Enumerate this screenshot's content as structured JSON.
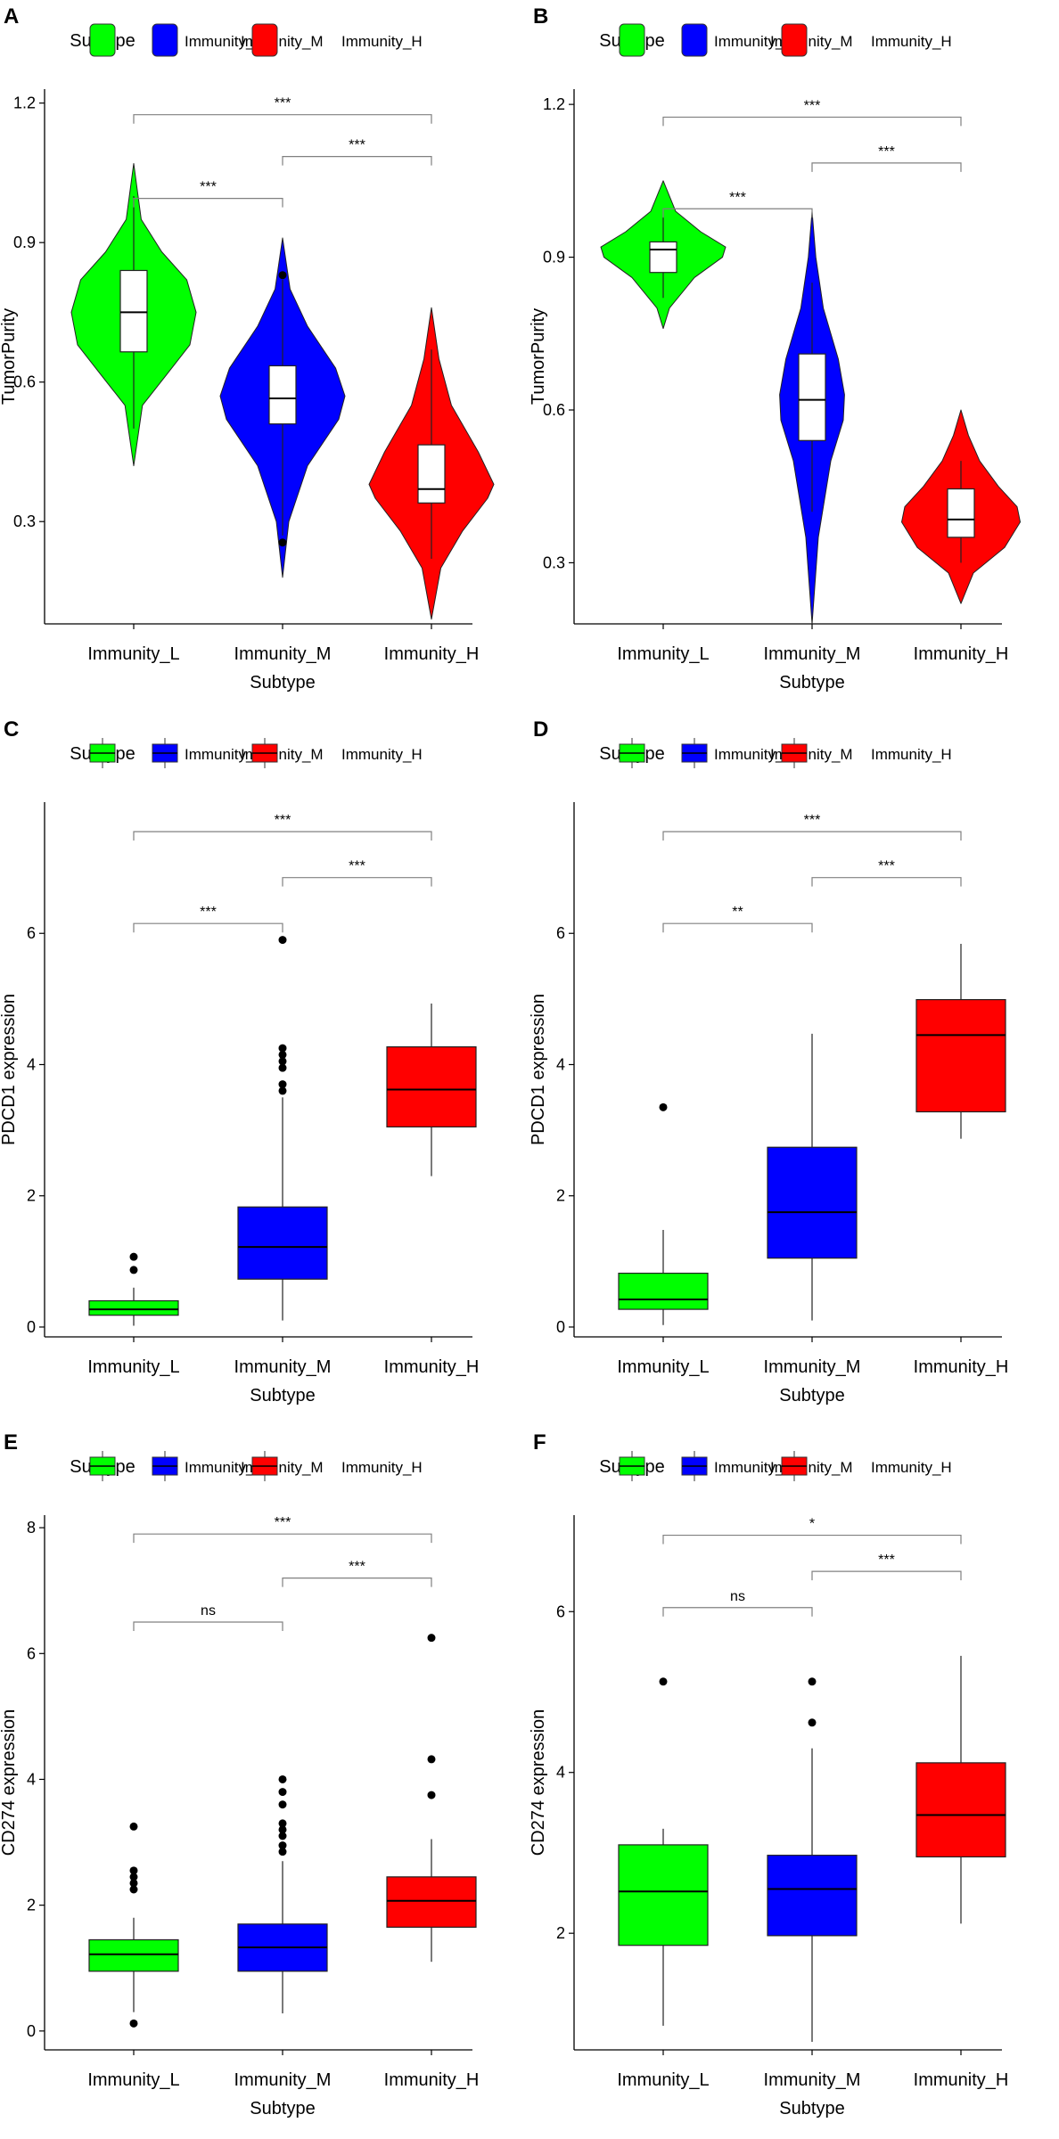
{
  "colors": {
    "Immunity_L": "#00ff00",
    "Immunity_M": "#0000ff",
    "Immunity_H": "#ff0000",
    "axis": "#000000",
    "bracket": "#808080"
  },
  "chart_data": [
    {
      "panel": "A",
      "type": "violin",
      "legend": {
        "title": "Subtype",
        "entries": [
          "Immunity_L",
          "Immunity_M",
          "Immunity_H"
        ]
      },
      "categories": [
        "Immunity_L",
        "Immunity_M",
        "Immunity_H"
      ],
      "xlabel": "Subtype",
      "ylabel": "TumorPurity",
      "ylim": [
        0.08,
        1.23
      ],
      "yticks": [
        0.3,
        0.6,
        0.9,
        1.2
      ],
      "ytick_labels": [
        "0.3",
        "0.6",
        "0.9",
        "1.2"
      ],
      "violins": [
        {
          "name": "Immunity_L",
          "min": 0.42,
          "max": 1.07,
          "profile": [
            [
              0.42,
              0.0
            ],
            [
              0.55,
              0.14
            ],
            [
              0.62,
              0.55
            ],
            [
              0.68,
              0.9
            ],
            [
              0.75,
              1.0
            ],
            [
              0.82,
              0.85
            ],
            [
              0.88,
              0.45
            ],
            [
              0.95,
              0.12
            ],
            [
              1.07,
              0.0
            ]
          ]
        },
        {
          "name": "Immunity_M",
          "min": 0.18,
          "max": 0.91,
          "profile": [
            [
              0.18,
              0.0
            ],
            [
              0.3,
              0.1
            ],
            [
              0.42,
              0.4
            ],
            [
              0.52,
              0.9
            ],
            [
              0.57,
              1.0
            ],
            [
              0.63,
              0.85
            ],
            [
              0.72,
              0.4
            ],
            [
              0.8,
              0.12
            ],
            [
              0.91,
              0.0
            ]
          ]
        },
        {
          "name": "Immunity_H",
          "min": 0.09,
          "max": 0.76,
          "profile": [
            [
              0.09,
              0.0
            ],
            [
              0.2,
              0.15
            ],
            [
              0.28,
              0.5
            ],
            [
              0.35,
              0.9
            ],
            [
              0.38,
              1.0
            ],
            [
              0.45,
              0.75
            ],
            [
              0.55,
              0.32
            ],
            [
              0.65,
              0.12
            ],
            [
              0.76,
              0.0
            ]
          ]
        }
      ],
      "boxes": [
        {
          "name": "Immunity_L",
          "whisker_low": 0.5,
          "q1": 0.665,
          "median": 0.75,
          "q3": 0.84,
          "whisker_high": 1.0,
          "outliers": []
        },
        {
          "name": "Immunity_M",
          "whisker_low": 0.27,
          "q1": 0.51,
          "median": 0.565,
          "q3": 0.635,
          "whisker_high": 0.82,
          "outliers": [
            0.255,
            0.83
          ]
        },
        {
          "name": "Immunity_H",
          "whisker_low": 0.22,
          "q1": 0.34,
          "median": 0.37,
          "q3": 0.465,
          "whisker_high": 0.67,
          "outliers": []
        }
      ],
      "comparisons": [
        {
          "from": 0,
          "to": 1,
          "y": 0.995,
          "label": "***"
        },
        {
          "from": 1,
          "to": 2,
          "y": 1.085,
          "label": "***"
        },
        {
          "from": 0,
          "to": 2,
          "y": 1.175,
          "label": "***"
        }
      ]
    },
    {
      "panel": "B",
      "type": "violin",
      "legend": {
        "title": "Subtype",
        "entries": [
          "Immunity_L",
          "Immunity_M",
          "Immunity_H"
        ]
      },
      "categories": [
        "Immunity_L",
        "Immunity_M",
        "Immunity_H"
      ],
      "xlabel": "Subtype",
      "ylabel": "TumorPurity",
      "ylim": [
        0.18,
        1.23
      ],
      "yticks": [
        0.3,
        0.6,
        0.9,
        1.2
      ],
      "ytick_labels": [
        "0.3",
        "0.6",
        "0.9",
        "1.2"
      ],
      "violins": [
        {
          "name": "Immunity_L",
          "min": 0.76,
          "max": 1.05,
          "profile": [
            [
              0.76,
              0.0
            ],
            [
              0.8,
              0.1
            ],
            [
              0.86,
              0.5
            ],
            [
              0.9,
              0.95
            ],
            [
              0.92,
              1.0
            ],
            [
              0.95,
              0.6
            ],
            [
              0.99,
              0.2
            ],
            [
              1.05,
              0.0
            ]
          ]
        },
        {
          "name": "Immunity_M",
          "min": 0.18,
          "max": 0.99,
          "profile": [
            [
              0.18,
              0.0
            ],
            [
              0.35,
              0.1
            ],
            [
              0.5,
              0.3
            ],
            [
              0.58,
              0.5
            ],
            [
              0.63,
              0.52
            ],
            [
              0.7,
              0.42
            ],
            [
              0.8,
              0.18
            ],
            [
              0.9,
              0.06
            ],
            [
              0.99,
              0.0
            ]
          ]
        },
        {
          "name": "Immunity_H",
          "min": 0.22,
          "max": 0.6,
          "profile": [
            [
              0.22,
              0.0
            ],
            [
              0.28,
              0.2
            ],
            [
              0.33,
              0.7
            ],
            [
              0.38,
              0.95
            ],
            [
              0.41,
              0.9
            ],
            [
              0.45,
              0.6
            ],
            [
              0.5,
              0.3
            ],
            [
              0.55,
              0.12
            ],
            [
              0.6,
              0.0
            ]
          ]
        }
      ],
      "boxes": [
        {
          "name": "Immunity_L",
          "whisker_low": 0.82,
          "q1": 0.87,
          "median": 0.915,
          "q3": 0.93,
          "whisker_high": 0.98,
          "outliers": []
        },
        {
          "name": "Immunity_M",
          "whisker_low": 0.4,
          "q1": 0.54,
          "median": 0.62,
          "q3": 0.71,
          "whisker_high": 0.85,
          "outliers": []
        },
        {
          "name": "Immunity_H",
          "whisker_low": 0.3,
          "q1": 0.35,
          "median": 0.385,
          "q3": 0.445,
          "whisker_high": 0.5,
          "outliers": []
        }
      ],
      "comparisons": [
        {
          "from": 0,
          "to": 1,
          "y": 0.995,
          "label": "***"
        },
        {
          "from": 1,
          "to": 2,
          "y": 1.085,
          "label": "***"
        },
        {
          "from": 0,
          "to": 2,
          "y": 1.175,
          "label": "***"
        }
      ]
    },
    {
      "panel": "C",
      "type": "box",
      "legend": {
        "title": "Subtype",
        "entries": [
          "Immunity_L",
          "Immunity_M",
          "Immunity_H"
        ]
      },
      "categories": [
        "Immunity_L",
        "Immunity_M",
        "Immunity_H"
      ],
      "xlabel": "Subtype",
      "ylabel": "PDCD1 expression",
      "ylim": [
        -0.15,
        8.0
      ],
      "yticks": [
        0,
        2,
        4,
        6
      ],
      "ytick_labels": [
        "0",
        "2",
        "4",
        "6"
      ],
      "boxes": [
        {
          "name": "Immunity_L",
          "whisker_low": 0.02,
          "q1": 0.18,
          "median": 0.27,
          "q3": 0.4,
          "whisker_high": 0.6,
          "outliers": [
            0.87,
            1.07
          ]
        },
        {
          "name": "Immunity_M",
          "whisker_low": 0.1,
          "q1": 0.73,
          "median": 1.22,
          "q3": 1.83,
          "whisker_high": 3.5,
          "outliers": [
            3.6,
            3.7,
            3.95,
            4.05,
            4.15,
            4.25,
            5.9
          ]
        },
        {
          "name": "Immunity_H",
          "whisker_low": 2.3,
          "q1": 3.05,
          "median": 3.62,
          "q3": 4.27,
          "whisker_high": 4.93,
          "outliers": []
        }
      ],
      "comparisons": [
        {
          "from": 0,
          "to": 1,
          "y": 6.15,
          "label": "***"
        },
        {
          "from": 1,
          "to": 2,
          "y": 6.85,
          "label": "***"
        },
        {
          "from": 0,
          "to": 2,
          "y": 7.55,
          "label": "***"
        }
      ]
    },
    {
      "panel": "D",
      "type": "box",
      "legend": {
        "title": "Subtype",
        "entries": [
          "Immunity_L",
          "Immunity_M",
          "Immunity_H"
        ]
      },
      "categories": [
        "Immunity_L",
        "Immunity_M",
        "Immunity_H"
      ],
      "xlabel": "Subtype",
      "ylabel": "PDCD1 expression",
      "ylim": [
        -0.15,
        8.0
      ],
      "yticks": [
        0,
        2,
        4,
        6
      ],
      "ytick_labels": [
        "0",
        "2",
        "4",
        "6"
      ],
      "boxes": [
        {
          "name": "Immunity_L",
          "whisker_low": 0.03,
          "q1": 0.27,
          "median": 0.42,
          "q3": 0.82,
          "whisker_high": 1.48,
          "outliers": [
            3.35
          ]
        },
        {
          "name": "Immunity_M",
          "whisker_low": 0.1,
          "q1": 1.05,
          "median": 1.75,
          "q3": 2.74,
          "whisker_high": 4.47,
          "outliers": []
        },
        {
          "name": "Immunity_H",
          "whisker_low": 2.87,
          "q1": 3.28,
          "median": 4.45,
          "q3": 4.99,
          "whisker_high": 5.84,
          "outliers": []
        }
      ],
      "comparisons": [
        {
          "from": 0,
          "to": 1,
          "y": 6.15,
          "label": "**"
        },
        {
          "from": 1,
          "to": 2,
          "y": 6.85,
          "label": "***"
        },
        {
          "from": 0,
          "to": 2,
          "y": 7.55,
          "label": "***"
        }
      ]
    },
    {
      "panel": "E",
      "type": "box",
      "legend": {
        "title": "Subtype",
        "entries": [
          "Immunity_L",
          "Immunity_M",
          "Immunity_H"
        ]
      },
      "categories": [
        "Immunity_L",
        "Immunity_M",
        "Immunity_H"
      ],
      "xlabel": "Subtype",
      "ylabel": "CD274 expression",
      "ylim": [
        -0.3,
        8.2
      ],
      "yticks": [
        0,
        2,
        4,
        6,
        8
      ],
      "ytick_labels": [
        "0",
        "2",
        "4",
        "6",
        "8"
      ],
      "boxes": [
        {
          "name": "Immunity_L",
          "whisker_low": 0.3,
          "q1": 0.95,
          "median": 1.22,
          "q3": 1.45,
          "whisker_high": 1.8,
          "outliers": [
            0.12,
            2.25,
            2.35,
            2.45,
            2.55,
            3.25
          ]
        },
        {
          "name": "Immunity_M",
          "whisker_low": 0.28,
          "q1": 0.95,
          "median": 1.33,
          "q3": 1.7,
          "whisker_high": 2.7,
          "outliers": [
            2.85,
            2.95,
            3.1,
            3.2,
            3.3,
            3.6,
            3.8,
            4.0
          ]
        },
        {
          "name": "Immunity_H",
          "whisker_low": 1.1,
          "q1": 1.65,
          "median": 2.07,
          "q3": 2.45,
          "whisker_high": 3.05,
          "outliers": [
            3.75,
            4.32,
            6.25
          ]
        }
      ],
      "comparisons": [
        {
          "from": 0,
          "to": 1,
          "y": 6.5,
          "label": "ns"
        },
        {
          "from": 1,
          "to": 2,
          "y": 7.2,
          "label": "***"
        },
        {
          "from": 0,
          "to": 2,
          "y": 7.9,
          "label": "***"
        }
      ]
    },
    {
      "panel": "F",
      "type": "box",
      "legend": {
        "title": "Subtype",
        "entries": [
          "Immunity_L",
          "Immunity_M",
          "Immunity_H"
        ]
      },
      "categories": [
        "Immunity_L",
        "Immunity_M",
        "Immunity_H"
      ],
      "xlabel": "Subtype",
      "ylabel": "CD274 expression",
      "ylim": [
        0.55,
        7.2
      ],
      "yticks": [
        2,
        4,
        6
      ],
      "ytick_labels": [
        "2",
        "4",
        "6"
      ],
      "boxes": [
        {
          "name": "Immunity_L",
          "whisker_low": 0.85,
          "q1": 1.85,
          "median": 2.52,
          "q3": 3.1,
          "whisker_high": 3.3,
          "outliers": [
            5.13
          ]
        },
        {
          "name": "Immunity_M",
          "whisker_low": 0.65,
          "q1": 1.97,
          "median": 2.55,
          "q3": 2.97,
          "whisker_high": 4.3,
          "outliers": [
            4.62,
            5.13
          ]
        },
        {
          "name": "Immunity_H",
          "whisker_low": 2.12,
          "q1": 2.95,
          "median": 3.47,
          "q3": 4.12,
          "whisker_high": 5.45,
          "outliers": []
        }
      ],
      "comparisons": [
        {
          "from": 0,
          "to": 1,
          "y": 6.05,
          "label": "ns"
        },
        {
          "from": 1,
          "to": 2,
          "y": 6.5,
          "label": "***"
        },
        {
          "from": 0,
          "to": 2,
          "y": 6.95,
          "label": "*"
        }
      ]
    }
  ]
}
